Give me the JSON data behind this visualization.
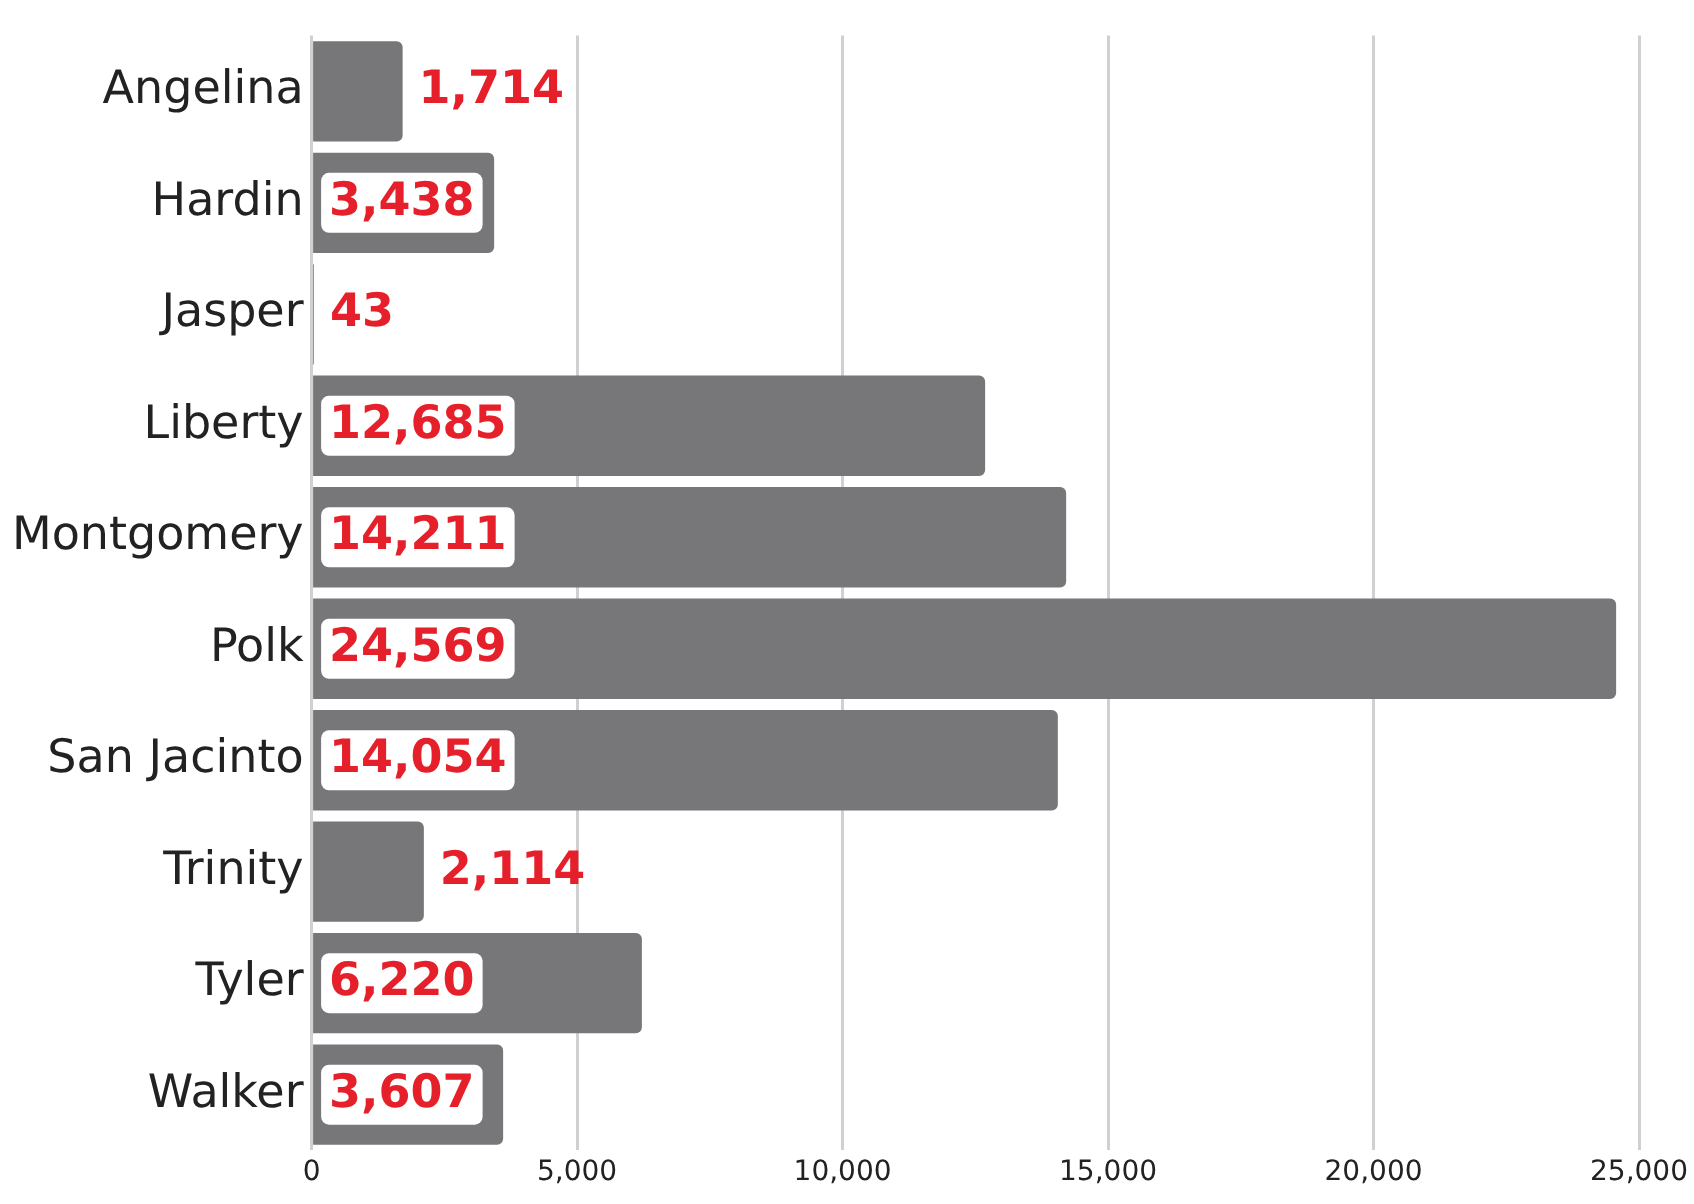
{
  "chart_data": {
    "type": "bar",
    "orientation": "horizontal",
    "categories": [
      "Angelina",
      "Hardin",
      "Jasper",
      "Liberty",
      "Montgomery",
      "Polk",
      "San Jacinto",
      "Trinity",
      "Tyler",
      "Walker"
    ],
    "values": [
      1714,
      3438,
      43,
      12685,
      14211,
      24569,
      14054,
      2114,
      6220,
      3607
    ],
    "color": "#77777a",
    "xlim": [
      0,
      25000
    ],
    "xticks": [
      0,
      {
        "value": 5000,
        "label": "5,000"
      },
      {
        "value": 10000,
        "label": "10,000"
      },
      {
        "value": 15000,
        "label": "15,000"
      },
      {
        "value": 20000,
        "label": "20,000"
      },
      {
        "value": 25000,
        "label": "25,000"
      }
    ],
    "value_labels": [
      "1,714",
      "3,438",
      "43",
      "12,685",
      "14,211",
      "24,569",
      "14,054",
      "2,114",
      "6,220",
      "3,607"
    ],
    "grid": "x",
    "legend": false
  }
}
